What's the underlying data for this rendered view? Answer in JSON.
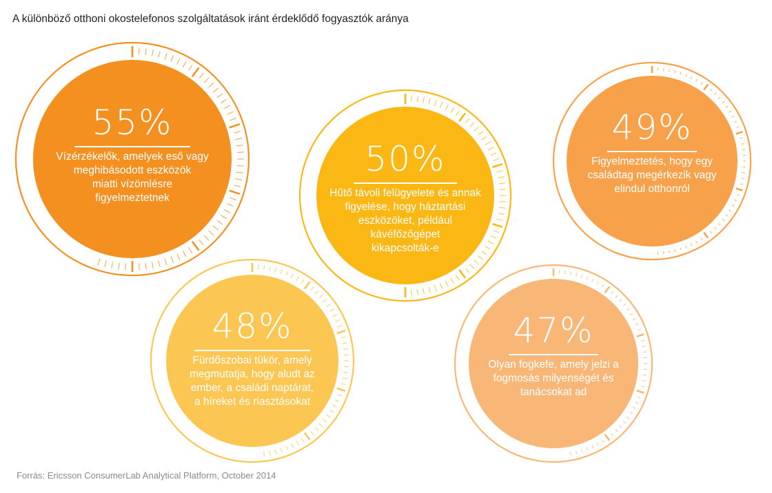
{
  "title": "A különböző otthoni okostelefonos szolgáltatások iránt érdeklődő fogyasztók aránya",
  "source": "Forrás:  Ericsson ConsumerLab Analytical Platform, October 2014",
  "chart_data": {
    "type": "gauge-bubbles",
    "title": "A különböző otthoni okostelefonos szolgáltatások iránt érdeklődő fogyasztók aránya",
    "unit": "%",
    "scale": [
      0,
      100
    ],
    "items": [
      {
        "label": "55%",
        "value": 55,
        "description": [
          "Vízérzékelők, amelyek eső vagy",
          "meghibásodott eszközök",
          "miatti vízömlésre",
          "figyelmeztetnek"
        ],
        "color": "#F39020"
      },
      {
        "label": "50%",
        "value": 50,
        "description": [
          "Hűtő távoli felügyelete és annak",
          "figyelése, hogy háztartási",
          "eszközöket, például",
          "kávéfőzőgépet",
          "kikapcsolták-e"
        ],
        "color": "#FBB714"
      },
      {
        "label": "49%",
        "value": 49,
        "description": [
          "Figyelmeztetés, hogy egy",
          "családtag megérkezik vagy",
          "elindul otthonról"
        ],
        "color": "#F7A24A"
      },
      {
        "label": "48%",
        "value": 48,
        "description": [
          "Fürdőszobai tükör, amely",
          "megmutatja, hogy aludt az",
          "ember, a családi naptárat,",
          "a híreket és riasztásokat"
        ],
        "color": "#FCC652"
      },
      {
        "label": "47%",
        "value": 47,
        "description": [
          "Olyan fogkefe, amely jelzi a",
          "fogmosás milyenségét és",
          "tanácsokat ad"
        ],
        "color": "#F8B777"
      }
    ],
    "source": "Forrás:  Ericsson ConsumerLab Analytical Platform, October 2014"
  }
}
